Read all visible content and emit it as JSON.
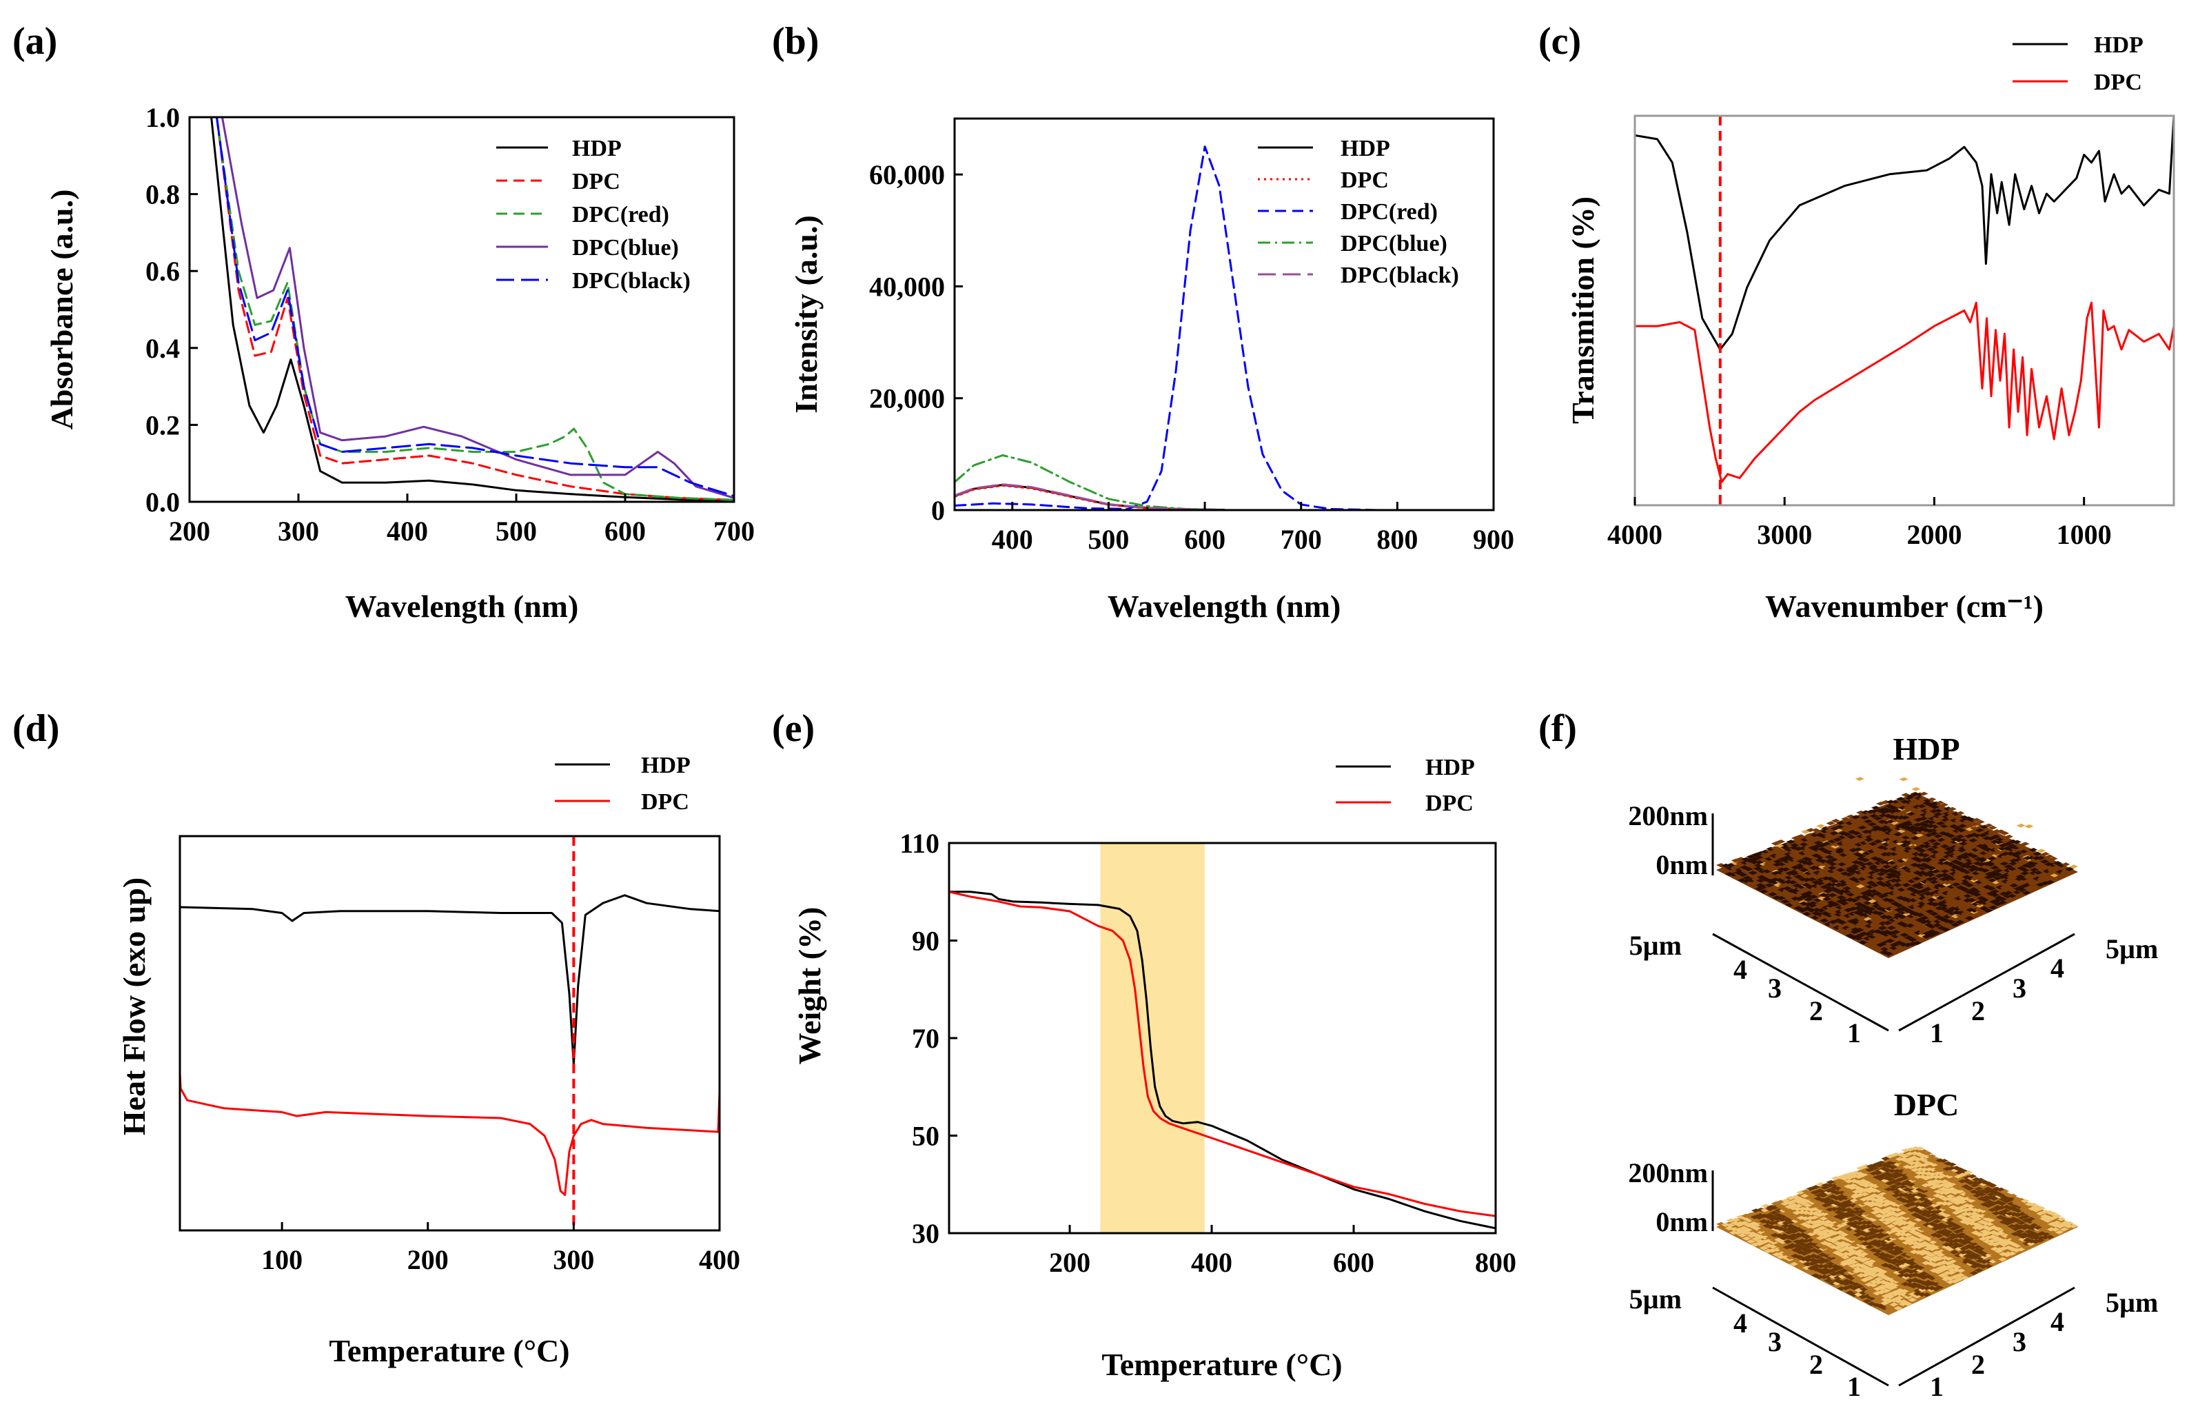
{
  "figure": {
    "panel_labels": [
      "(a)",
      "(b)",
      "(c)",
      "(d)",
      "(e)",
      "(f)"
    ]
  },
  "chart_data": [
    {
      "id": "a",
      "type": "line",
      "xlabel": "Wavelength (nm)",
      "ylabel": "Absorbance (a.u.)",
      "xlim": [
        200,
        700
      ],
      "ylim": [
        0,
        1.0
      ],
      "xticks": [
        200,
        300,
        400,
        500,
        600,
        700
      ],
      "yticks": [
        0.0,
        0.2,
        0.4,
        0.6,
        0.8,
        1.0
      ],
      "xtick_labels": [
        "200",
        "300",
        "400",
        "500",
        "600",
        "700"
      ],
      "ytick_labels": [
        "0.0",
        "0.2",
        "0.4",
        "0.6",
        "0.8",
        "1.0"
      ],
      "legend": "top-right",
      "series": [
        {
          "name": "HDP",
          "color": "#000000",
          "dash": "solid",
          "x": [
            220,
            240,
            255,
            268,
            280,
            293,
            305,
            320,
            340,
            380,
            420,
            460,
            500,
            550,
            600,
            650,
            700
          ],
          "y": [
            1.0,
            0.46,
            0.25,
            0.18,
            0.25,
            0.37,
            0.25,
            0.08,
            0.05,
            0.05,
            0.055,
            0.045,
            0.03,
            0.02,
            0.012,
            0.006,
            0.003
          ]
        },
        {
          "name": "DPC",
          "color": "#ff0000",
          "dash": "dashed",
          "x": [
            225,
            245,
            260,
            275,
            290,
            305,
            320,
            340,
            380,
            420,
            460,
            500,
            550,
            600,
            650,
            700
          ],
          "y": [
            1.0,
            0.55,
            0.38,
            0.39,
            0.53,
            0.28,
            0.12,
            0.1,
            0.11,
            0.12,
            0.1,
            0.07,
            0.04,
            0.02,
            0.01,
            0.005
          ]
        },
        {
          "name": "DPC(red)",
          "color": "#2ca02c",
          "dash": "dashed",
          "x": [
            225,
            245,
            260,
            275,
            290,
            305,
            320,
            340,
            380,
            420,
            460,
            500,
            530,
            545,
            553,
            565,
            580,
            600,
            650,
            700
          ],
          "y": [
            1.0,
            0.6,
            0.46,
            0.47,
            0.57,
            0.3,
            0.15,
            0.13,
            0.13,
            0.14,
            0.13,
            0.13,
            0.15,
            0.17,
            0.19,
            0.14,
            0.05,
            0.02,
            0.01,
            0.005
          ]
        },
        {
          "name": "DPC(blue)",
          "color": "#7030a0",
          "dash": "solid",
          "x": [
            230,
            248,
            262,
            277,
            292,
            305,
            320,
            340,
            380,
            415,
            450,
            500,
            550,
            600,
            615,
            630,
            645,
            665,
            700
          ],
          "y": [
            1.0,
            0.72,
            0.53,
            0.55,
            0.66,
            0.4,
            0.18,
            0.16,
            0.17,
            0.195,
            0.17,
            0.11,
            0.07,
            0.07,
            0.1,
            0.13,
            0.1,
            0.04,
            0.01
          ]
        },
        {
          "name": "DPC(black)",
          "color": "#0000ff",
          "dash": "longdash",
          "x": [
            225,
            245,
            260,
            275,
            290,
            305,
            320,
            340,
            380,
            420,
            460,
            500,
            550,
            600,
            630,
            660,
            700
          ],
          "y": [
            1.0,
            0.57,
            0.42,
            0.44,
            0.55,
            0.3,
            0.15,
            0.13,
            0.14,
            0.15,
            0.14,
            0.12,
            0.1,
            0.09,
            0.09,
            0.05,
            0.015
          ]
        }
      ]
    },
    {
      "id": "b",
      "type": "line",
      "xlabel": "Wavelength (nm)",
      "ylabel": "Intensity (a.u.)",
      "xlim": [
        340,
        900
      ],
      "ylim": [
        0,
        70000
      ],
      "xticks": [
        400,
        500,
        600,
        700,
        800,
        900
      ],
      "yticks": [
        0,
        20000,
        40000,
        60000
      ],
      "xtick_labels": [
        "400",
        "500",
        "600",
        "700",
        "800",
        "900"
      ],
      "ytick_labels": [
        "0",
        "20,000",
        "40,000",
        "60,000"
      ],
      "legend": "top-right",
      "series": [
        {
          "name": "HDP",
          "color": "#000000",
          "dash": "solid",
          "x": [
            340,
            360,
            390,
            420,
            460,
            500,
            540,
            580,
            620
          ],
          "y": [
            2500,
            3800,
            4500,
            4000,
            2500,
            1000,
            400,
            150,
            50
          ]
        },
        {
          "name": "DPC",
          "color": "#ff0000",
          "dash": "dotted",
          "x": [
            340,
            360,
            390,
            420,
            460,
            500,
            540,
            580,
            620
          ],
          "y": [
            2400,
            3700,
            4400,
            3900,
            2400,
            950,
            350,
            120,
            40
          ]
        },
        {
          "name": "DPC(red)",
          "color": "#0000ff",
          "dash": "dashed",
          "x": [
            340,
            380,
            420,
            480,
            520,
            540,
            555,
            570,
            585,
            600,
            615,
            630,
            645,
            660,
            680,
            700,
            730,
            780,
            900
          ],
          "y": [
            800,
            1200,
            1000,
            300,
            200,
            1500,
            7000,
            25000,
            50000,
            65000,
            58000,
            40000,
            22000,
            10000,
            3500,
            1000,
            200,
            0,
            0
          ]
        },
        {
          "name": "DPC(blue)",
          "color": "#2ca02c",
          "dash": "dashdot",
          "x": [
            340,
            360,
            390,
            420,
            460,
            500,
            540,
            580,
            620
          ],
          "y": [
            5000,
            8000,
            9800,
            8500,
            5000,
            2000,
            700,
            200,
            60
          ]
        },
        {
          "name": "DPC(black)",
          "color": "#9b4e9b",
          "dash": "longdash",
          "x": [
            340,
            360,
            390,
            420,
            460,
            500,
            540,
            580,
            620
          ],
          "y": [
            2600,
            3900,
            4600,
            4100,
            2600,
            1050,
            420,
            160,
            55
          ]
        }
      ]
    },
    {
      "id": "c",
      "type": "line",
      "xlabel": "Wavenumber (cm⁻¹)",
      "ylabel": "Transmition (%)",
      "xlim": [
        4000,
        400
      ],
      "ylim": [
        0,
        100
      ],
      "xticks": [
        4000,
        3000,
        2000,
        1000
      ],
      "xtick_labels": [
        "4000",
        "3000",
        "2000",
        "1000"
      ],
      "legend": "top-right",
      "vline": {
        "x": 3430,
        "color": "#ff0000"
      },
      "series": [
        {
          "name": "HDP",
          "color": "#000000",
          "dash": "solid",
          "x": [
            4000,
            3850,
            3750,
            3650,
            3550,
            3430,
            3350,
            3250,
            3100,
            2900,
            2600,
            2300,
            2050,
            1900,
            1800,
            1720,
            1680,
            1655,
            1620,
            1580,
            1550,
            1500,
            1460,
            1400,
            1350,
            1300,
            1250,
            1200,
            1150,
            1100,
            1050,
            1000,
            950,
            900,
            860,
            800,
            750,
            700,
            600,
            500,
            430,
            400
          ],
          "y": [
            95,
            94,
            88,
            70,
            48,
            40,
            44,
            56,
            68,
            77,
            82,
            85,
            86,
            89,
            92,
            88,
            82,
            62,
            85,
            75,
            83,
            72,
            85,
            76,
            82,
            75,
            80,
            78,
            80,
            82,
            84,
            90,
            88,
            91,
            78,
            85,
            80,
            82,
            77,
            81,
            80,
            100
          ]
        },
        {
          "name": "DPC",
          "color": "#ff0000",
          "dash": "solid",
          "x": [
            4000,
            3850,
            3700,
            3600,
            3500,
            3460,
            3420,
            3380,
            3300,
            3200,
            3000,
            2950,
            2900,
            2800,
            2500,
            2200,
            2000,
            1900,
            1800,
            1760,
            1720,
            1680,
            1650,
            1620,
            1590,
            1560,
            1530,
            1500,
            1470,
            1440,
            1410,
            1380,
            1350,
            1300,
            1250,
            1200,
            1150,
            1100,
            1060,
            1020,
            980,
            950,
            900,
            870,
            840,
            800,
            750,
            700,
            600,
            500,
            430,
            400
          ],
          "y": [
            46,
            46,
            47,
            45,
            20,
            12,
            6,
            8,
            7,
            12,
            20,
            22,
            24,
            27,
            34,
            41,
            46,
            48,
            50,
            47,
            52,
            30,
            48,
            28,
            45,
            32,
            44,
            20,
            40,
            24,
            38,
            18,
            35,
            20,
            28,
            17,
            30,
            18,
            24,
            32,
            48,
            52,
            20,
            50,
            45,
            46,
            40,
            45,
            42,
            44,
            40,
            46
          ]
        }
      ]
    },
    {
      "id": "d",
      "type": "line",
      "xlabel": "Temperature (°C)",
      "ylabel": "Heat Flow (exo up)",
      "xlim": [
        30,
        400
      ],
      "ylim": [
        0,
        100
      ],
      "xticks": [
        100,
        200,
        300,
        400
      ],
      "xtick_labels": [
        "100",
        "200",
        "300",
        "400"
      ],
      "legend": "top-right",
      "vline": {
        "x": 300,
        "color": "#ff0000"
      },
      "series": [
        {
          "name": "HDP",
          "color": "#000000",
          "dash": "solid",
          "x": [
            30,
            80,
            100,
            107,
            115,
            140,
            200,
            250,
            285,
            292,
            297,
            300,
            303,
            308,
            320,
            335,
            350,
            380,
            400
          ],
          "y": [
            82,
            81.5,
            80.5,
            78.5,
            80.5,
            81,
            81,
            80.5,
            80.5,
            78,
            60,
            42,
            62,
            80,
            83,
            85,
            83,
            81.5,
            81
          ]
        },
        {
          "name": "DPC",
          "color": "#ff0000",
          "dash": "solid",
          "x": [
            30,
            30.5,
            35,
            60,
            100,
            110,
            130,
            200,
            250,
            270,
            280,
            287,
            291,
            294,
            297,
            300,
            305,
            312,
            320,
            350,
            399,
            400
          ],
          "y": [
            40,
            36,
            33,
            31,
            30,
            29,
            30,
            29,
            28.5,
            27,
            24,
            18,
            10,
            9,
            20,
            24,
            27,
            28,
            27,
            26,
            25,
            35
          ]
        }
      ]
    },
    {
      "id": "e",
      "type": "line",
      "xlabel": "Temperature (°C)",
      "ylabel": "Weight (%)",
      "xlim": [
        30,
        800
      ],
      "ylim": [
        30,
        110
      ],
      "xticks": [
        200,
        400,
        600,
        800
      ],
      "yticks": [
        30,
        50,
        70,
        90,
        110
      ],
      "xtick_labels": [
        "200",
        "400",
        "600",
        "800"
      ],
      "ytick_labels": [
        "30",
        "50",
        "70",
        "90",
        "110"
      ],
      "legend": "top-right",
      "highlight": {
        "x": [
          243,
          390
        ],
        "color": "#fde4a0"
      },
      "series": [
        {
          "name": "HDP",
          "color": "#000000",
          "dash": "solid",
          "x": [
            30,
            60,
            90,
            100,
            120,
            160,
            200,
            240,
            270,
            285,
            295,
            302,
            308,
            314,
            320,
            327,
            335,
            345,
            360,
            380,
            400,
            450,
            500,
            550,
            600,
            650,
            700,
            750,
            800
          ],
          "y": [
            100,
            100,
            99.5,
            98.5,
            98,
            97.8,
            97.5,
            97.3,
            96.5,
            95,
            92,
            86,
            78,
            68,
            60,
            56,
            54,
            53,
            52.5,
            52.8,
            52,
            49,
            45,
            42,
            39,
            37,
            34.5,
            32.5,
            31
          ]
        },
        {
          "name": "DPC",
          "color": "#ff0000",
          "dash": "solid",
          "x": [
            30,
            60,
            100,
            130,
            160,
            200,
            220,
            240,
            260,
            275,
            285,
            292,
            298,
            304,
            310,
            318,
            328,
            340,
            360,
            380,
            400,
            450,
            500,
            550,
            600,
            650,
            700,
            750,
            800
          ],
          "y": [
            100,
            99,
            98,
            97,
            96.8,
            96,
            94.5,
            93,
            92,
            90,
            86,
            80,
            72,
            64,
            58,
            55,
            53.5,
            52.5,
            51.5,
            50.5,
            49.5,
            47,
            44.5,
            42,
            39.5,
            38,
            36,
            34.5,
            33.5
          ]
        }
      ]
    }
  ],
  "afm": {
    "panels": [
      {
        "title": "HDP",
        "z_ticks": [
          "200nm",
          "0nm"
        ],
        "left_axis_label": "5µm",
        "right_axis_label": "5µm",
        "left_ticks": [
          "4",
          "3",
          "2",
          "1"
        ],
        "right_ticks": [
          "1",
          "2",
          "3",
          "4"
        ],
        "palette": {
          "dark": "#2a0f00",
          "mid": "#7a3a08",
          "bright": "#e3a848"
        }
      },
      {
        "title": "DPC",
        "z_ticks": [
          "200nm",
          "0nm"
        ],
        "left_axis_label": "5µm",
        "right_axis_label": "5µm",
        "left_ticks": [
          "4",
          "3",
          "2",
          "1"
        ],
        "right_ticks": [
          "1",
          "2",
          "3",
          "4"
        ],
        "palette": {
          "dark": "#6a3806",
          "mid": "#b47520",
          "bright": "#f0c675"
        }
      }
    ]
  }
}
